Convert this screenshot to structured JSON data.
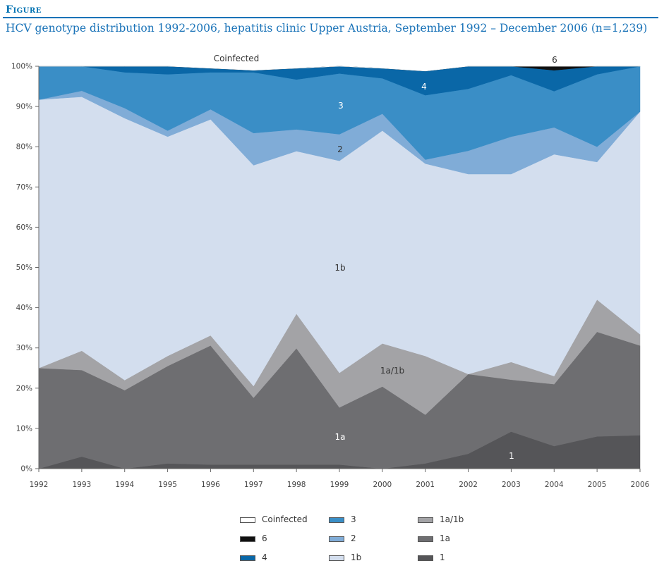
{
  "figure": {
    "label": "Figure",
    "title": "HCV genotype distribution 1992-2006, hepatitis clinic Upper Austria, September 1992 – December 2006 (n=1,239)"
  },
  "chart_data": {
    "type": "area",
    "stacked": true,
    "x": [
      "1992",
      "1993",
      "1994",
      "1995",
      "1996",
      "1997",
      "1998",
      "1999",
      "2000",
      "2001",
      "2002",
      "2003",
      "2004",
      "2005",
      "2006"
    ],
    "ylim": [
      0,
      100
    ],
    "y_ticks": [
      "0%",
      "10%",
      "20%",
      "30%",
      "40%",
      "50%",
      "60%",
      "70%",
      "80%",
      "90%",
      "100%"
    ],
    "grid": false,
    "legend_position": "bottom",
    "series": [
      {
        "name": "1",
        "color": "#555558",
        "values": [
          0,
          3,
          0,
          1.3,
          1,
          1,
          1,
          1,
          0,
          1.3,
          3.7,
          9.2,
          5.6,
          8,
          8.3
        ]
      },
      {
        "name": "1a",
        "color": "#6e6e71",
        "values": [
          25,
          21.5,
          19.5,
          24.2,
          29.6,
          16.6,
          28.9,
          14.2,
          20.4,
          12.1,
          19.8,
          12.9,
          15.4,
          26,
          22.3
        ]
      },
      {
        "name": "1a/1b",
        "color": "#a3a3a6",
        "values": [
          0,
          4.8,
          2.5,
          2.5,
          2.5,
          2.9,
          8.6,
          8.6,
          10.7,
          14.6,
          0,
          4.4,
          2,
          8,
          2.8
        ]
      },
      {
        "name": "1b",
        "color": "#d3deee",
        "values": [
          66.7,
          63.1,
          65.1,
          54.5,
          53.7,
          54.9,
          40.4,
          52.7,
          52.9,
          47.8,
          49.7,
          46.7,
          55.1,
          34.2,
          55.3
        ]
      },
      {
        "name": "2",
        "color": "#80acd7",
        "values": [
          0,
          1.5,
          2.5,
          1.5,
          2.5,
          8,
          5.4,
          6.6,
          4.2,
          1,
          5.8,
          9.3,
          6.7,
          3.8,
          0
        ]
      },
      {
        "name": "3",
        "color": "#3a8ec6",
        "values": [
          8.3,
          6.1,
          8.9,
          14,
          9.2,
          15.1,
          12.4,
          15.1,
          8.8,
          16,
          15.4,
          15.3,
          9,
          18,
          11.3
        ]
      },
      {
        "name": "4",
        "color": "#0a67a7",
        "values": [
          0,
          0,
          1.5,
          2.5,
          1,
          0.5,
          2.8,
          1.8,
          2.5,
          6,
          5.6,
          2.2,
          5.2,
          2,
          0
        ]
      },
      {
        "name": "6",
        "color": "#111111",
        "values": [
          0,
          0,
          0,
          0,
          0,
          0,
          0,
          0,
          0,
          0,
          0,
          0,
          1,
          0,
          0
        ]
      },
      {
        "name": "Coinfected",
        "color": "#ffffff",
        "values": [
          0,
          0,
          0,
          0,
          0.5,
          1,
          0,
          0,
          0,
          1.2,
          0,
          0,
          0,
          0,
          0
        ]
      }
    ],
    "annotations": [
      "Coinfected",
      "6",
      "4",
      "3",
      "2",
      "1b",
      "1a/1b",
      "1a",
      "1"
    ]
  }
}
